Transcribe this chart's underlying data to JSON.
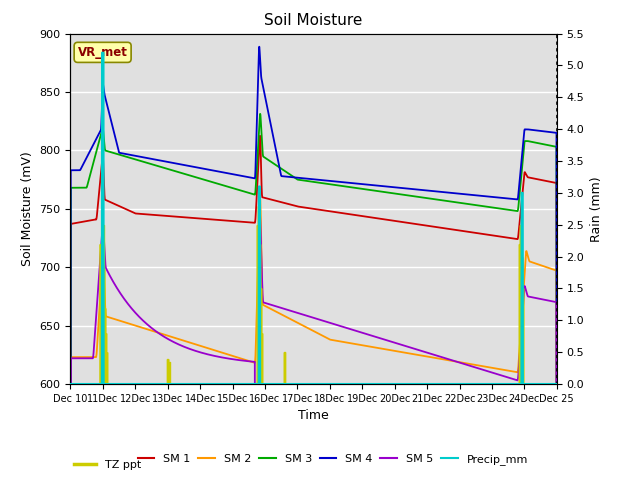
{
  "title": "Soil Moisture",
  "ylabel_left": "Soil Moisture (mV)",
  "ylabel_right": "Rain (mm)",
  "xlabel": "Time",
  "ylim_left": [
    600,
    900
  ],
  "ylim_right": [
    0.0,
    5.5
  ],
  "yticks_left": [
    600,
    650,
    700,
    750,
    800,
    850,
    900
  ],
  "yticks_right": [
    0.0,
    0.5,
    1.0,
    1.5,
    2.0,
    2.5,
    3.0,
    3.5,
    4.0,
    4.5,
    5.0,
    5.5
  ],
  "colors": {
    "SM1": "#cc0000",
    "SM2": "#ff9900",
    "SM3": "#00aa00",
    "SM4": "#0000cc",
    "SM5": "#9900cc",
    "Precip_mm": "#00cccc",
    "TZ_ppt": "#cccc00"
  },
  "annotation_box": "VR_met",
  "background_color": "#e0e0e0",
  "fig_color": "#ffffff"
}
